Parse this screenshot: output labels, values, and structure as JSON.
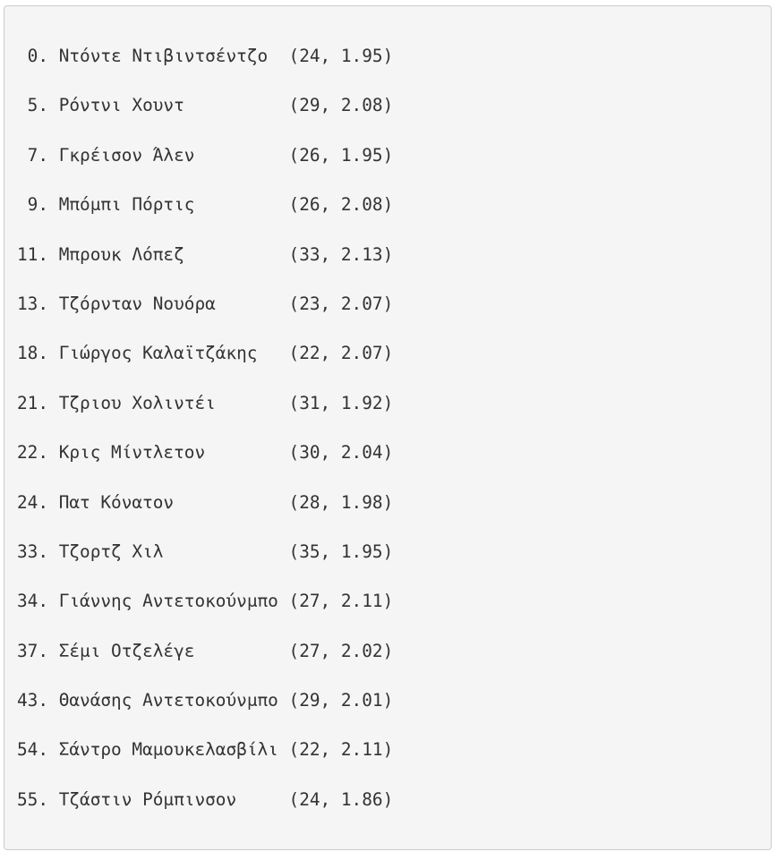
{
  "rows": [
    {
      "index": "0.",
      "name": "Ντόντε Ντιβιντσέντζο",
      "values": "(24, 1.95)"
    },
    {
      "index": "5.",
      "name": "Ρόντνι Χουντ",
      "values": "(29, 2.08)"
    },
    {
      "index": "7.",
      "name": "Γκρέισον Άλεν",
      "values": "(26, 1.95)"
    },
    {
      "index": "9.",
      "name": "Μπόμπι Πόρτις",
      "values": "(26, 2.08)"
    },
    {
      "index": "11.",
      "name": "Μπρουκ Λόπεζ",
      "values": "(33, 2.13)"
    },
    {
      "index": "13.",
      "name": "Τζόρνταν Νουόρα",
      "values": "(23, 2.07)"
    },
    {
      "index": "18.",
      "name": "Γιώργος Καλαϊτζάκης",
      "values": "(22, 2.07)"
    },
    {
      "index": "21.",
      "name": "Τζριου Χολιντέι",
      "values": "(31, 1.92)"
    },
    {
      "index": "22.",
      "name": "Κρις Μίντλετον",
      "values": "(30, 2.04)"
    },
    {
      "index": "24.",
      "name": "Πατ Κόνατον",
      "values": "(28, 1.98)"
    },
    {
      "index": "33.",
      "name": "Τζορτζ Χιλ",
      "values": "(35, 1.95)"
    },
    {
      "index": "34.",
      "name": "Γιάννης Αντετοκούνμπο",
      "values": "(27, 2.11)"
    },
    {
      "index": "37.",
      "name": "Σέμι Οτζελέγε",
      "values": "(27, 2.02)"
    },
    {
      "index": "43.",
      "name": "Θανάσης Αντετοκούνμπο",
      "values": "(29, 2.01)"
    },
    {
      "index": "54.",
      "name": "Σάντρο Μαμουκελασβίλι",
      "values": "(22, 2.11)"
    },
    {
      "index": "55.",
      "name": "Τζάστιν Ρόμπινσον",
      "values": "(24, 1.86)"
    }
  ]
}
